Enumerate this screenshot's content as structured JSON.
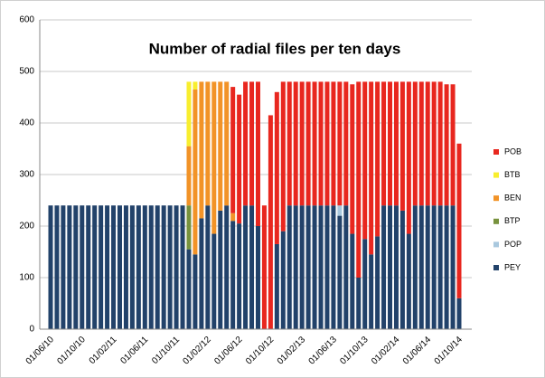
{
  "chart_data": {
    "type": "stacked_bar",
    "title": "Number of radial files per ten days",
    "categories": [
      "01/06/10",
      null,
      null,
      null,
      null,
      "01/10/10",
      null,
      null,
      null,
      null,
      "01/02/11",
      null,
      null,
      null,
      null,
      "01/06/11",
      null,
      null,
      null,
      null,
      "01/10/11",
      null,
      null,
      null,
      null,
      "01/02/12",
      null,
      null,
      null,
      null,
      "01/06/12",
      null,
      null,
      null,
      null,
      "01/10/12",
      null,
      null,
      null,
      null,
      "01/02/13",
      null,
      null,
      null,
      null,
      "01/06/13",
      null,
      null,
      null,
      null,
      "01/10/13",
      null,
      null,
      null,
      null,
      "01/02/14",
      null,
      null,
      null,
      null,
      "01/06/14",
      null,
      null,
      null,
      null,
      "01/10/14"
    ],
    "series": [
      {
        "name": "PEY",
        "color": "#22426a",
        "values": [
          240,
          240,
          240,
          240,
          240,
          240,
          240,
          240,
          240,
          240,
          240,
          240,
          240,
          240,
          240,
          240,
          240,
          240,
          240,
          240,
          240,
          240,
          155,
          145,
          215,
          240,
          185,
          230,
          240,
          210,
          205,
          240,
          240,
          200,
          0,
          0,
          165,
          190,
          240,
          240,
          240,
          240,
          240,
          240,
          240,
          240,
          220,
          240,
          185,
          100,
          175,
          145,
          180,
          240,
          240,
          240,
          230,
          185,
          240,
          240,
          240,
          240,
          240,
          240,
          240,
          60
        ]
      },
      {
        "name": "POP",
        "color": "#a9c8de",
        "values": [
          0,
          0,
          0,
          0,
          0,
          0,
          0,
          0,
          0,
          0,
          0,
          0,
          0,
          0,
          0,
          0,
          0,
          0,
          0,
          0,
          0,
          0,
          0,
          0,
          0,
          0,
          0,
          0,
          0,
          0,
          0,
          0,
          0,
          0,
          0,
          0,
          0,
          0,
          0,
          0,
          0,
          0,
          0,
          0,
          0,
          0,
          20,
          0,
          0,
          0,
          0,
          0,
          0,
          0,
          0,
          0,
          0,
          0,
          0,
          0,
          0,
          0,
          0,
          0,
          0,
          0
        ]
      },
      {
        "name": "BTP",
        "color": "#78923d",
        "values": [
          0,
          0,
          0,
          0,
          0,
          0,
          0,
          0,
          0,
          0,
          0,
          0,
          0,
          0,
          0,
          0,
          0,
          0,
          0,
          0,
          0,
          0,
          85,
          0,
          0,
          0,
          0,
          0,
          0,
          0,
          0,
          0,
          0,
          0,
          0,
          0,
          0,
          0,
          0,
          0,
          0,
          0,
          0,
          0,
          0,
          0,
          0,
          0,
          0,
          0,
          0,
          0,
          0,
          0,
          0,
          0,
          0,
          0,
          0,
          0,
          0,
          0,
          0,
          0,
          0,
          0
        ]
      },
      {
        "name": "BEN",
        "color": "#f29327",
        "values": [
          0,
          0,
          0,
          0,
          0,
          0,
          0,
          0,
          0,
          0,
          0,
          0,
          0,
          0,
          0,
          0,
          0,
          0,
          0,
          0,
          0,
          0,
          115,
          320,
          265,
          240,
          295,
          250,
          240,
          15,
          0,
          0,
          0,
          0,
          0,
          0,
          0,
          0,
          0,
          0,
          0,
          0,
          0,
          0,
          0,
          0,
          0,
          0,
          0,
          0,
          0,
          0,
          0,
          0,
          0,
          0,
          0,
          0,
          0,
          0,
          0,
          0,
          0,
          0,
          0,
          0
        ]
      },
      {
        "name": "BTB",
        "color": "#f8ee2e",
        "values": [
          0,
          0,
          0,
          0,
          0,
          0,
          0,
          0,
          0,
          0,
          0,
          0,
          0,
          0,
          0,
          0,
          0,
          0,
          0,
          0,
          0,
          0,
          125,
          15,
          0,
          0,
          0,
          0,
          0,
          0,
          0,
          0,
          0,
          0,
          0,
          0,
          0,
          0,
          0,
          0,
          0,
          0,
          0,
          0,
          0,
          0,
          0,
          0,
          0,
          0,
          0,
          0,
          0,
          0,
          0,
          0,
          0,
          0,
          0,
          0,
          0,
          0,
          0,
          0,
          0,
          0
        ]
      },
      {
        "name": "POB",
        "color": "#e8271f",
        "values": [
          0,
          0,
          0,
          0,
          0,
          0,
          0,
          0,
          0,
          0,
          0,
          0,
          0,
          0,
          0,
          0,
          0,
          0,
          0,
          0,
          0,
          0,
          0,
          0,
          0,
          0,
          0,
          0,
          0,
          245,
          250,
          240,
          240,
          280,
          240,
          415,
          295,
          290,
          240,
          240,
          240,
          240,
          240,
          240,
          240,
          240,
          240,
          240,
          290,
          380,
          305,
          335,
          300,
          240,
          240,
          240,
          250,
          295,
          240,
          240,
          240,
          240,
          240,
          235,
          235,
          300
        ]
      }
    ],
    "ylim": [
      0,
      600
    ],
    "yticks": [
      0,
      100,
      200,
      300,
      400,
      500,
      600
    ],
    "grid": true
  }
}
